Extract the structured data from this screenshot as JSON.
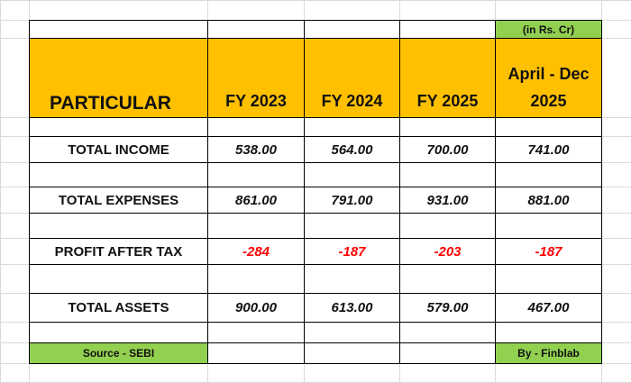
{
  "note": "(in Rs. Cr)",
  "table": {
    "header": [
      "PARTICULAR",
      "FY 2023",
      "FY 2024",
      "FY 2025",
      "April - Dec 2025"
    ],
    "rows": [
      [
        "TOTAL INCOME",
        "538.00",
        "564.00",
        "700.00",
        "741.00"
      ],
      [
        "TOTAL EXPENSES",
        "861.00",
        "791.00",
        "931.00",
        "881.00"
      ],
      [
        "PROFIT AFTER TAX",
        "-284",
        "-187",
        "-203",
        "-187"
      ],
      [
        "TOTAL ASSETS",
        "900.00",
        "613.00",
        "579.00",
        "467.00"
      ]
    ]
  },
  "footer": {
    "source": "Source - SEBI",
    "credit": "By - Finblab"
  }
}
